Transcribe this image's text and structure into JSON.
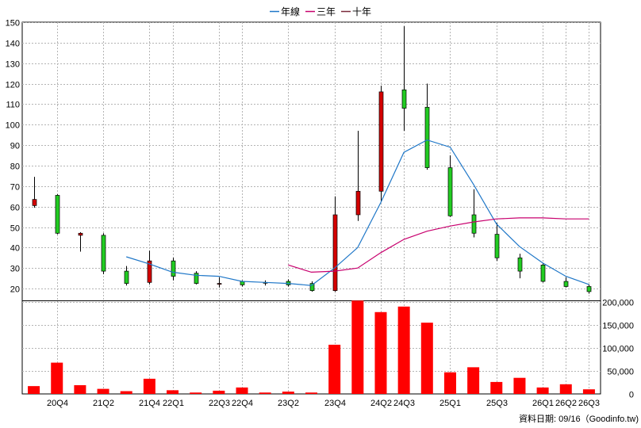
{
  "chart_data": {
    "type": "candlestick+line+bar",
    "title": "",
    "legend": {
      "placement": "top-center",
      "entries": [
        {
          "label": "年線",
          "color": "#1f77c8"
        },
        {
          "label": "三年",
          "color": "#c8006e"
        },
        {
          "label": "十年",
          "color": "#7a2a3a"
        }
      ]
    },
    "grid": true,
    "price_axis": {
      "min": 15,
      "max": 150,
      "ticks": [
        20,
        30,
        40,
        50,
        60,
        70,
        80,
        90,
        100,
        110,
        120,
        130,
        140,
        150
      ],
      "tick_labels": [
        "20",
        "30",
        "40",
        "50",
        "60",
        "70",
        "80",
        "90",
        "100",
        "110",
        "120",
        "130",
        "140",
        "150"
      ]
    },
    "volume_axis": {
      "min": 0,
      "max": 200000,
      "ticks": [
        0,
        50000,
        100000,
        150000,
        200000
      ],
      "tick_labels": [
        "0",
        "50,000",
        "100,000",
        "150,000",
        "200,000"
      ]
    },
    "x_tick_labels": [
      {
        "i": 1,
        "label": "20Q4"
      },
      {
        "i": 3,
        "label": "21Q2"
      },
      {
        "i": 5,
        "label": "21Q4"
      },
      {
        "i": 6,
        "label": "22Q1"
      },
      {
        "i": 8,
        "label": "22Q3"
      },
      {
        "i": 9,
        "label": "22Q4"
      },
      {
        "i": 11,
        "label": "23Q2"
      },
      {
        "i": 13,
        "label": "23Q4"
      },
      {
        "i": 15,
        "label": "24Q2"
      },
      {
        "i": 16,
        "label": "24Q3"
      },
      {
        "i": 18,
        "label": "25Q1"
      },
      {
        "i": 20,
        "label": "25Q3"
      },
      {
        "i": 22,
        "label": "26Q1"
      },
      {
        "i": 23,
        "label": "26Q2"
      },
      {
        "i": 24,
        "label": "26Q3"
      }
    ],
    "candles": [
      {
        "open": 60.5,
        "close": 63.5,
        "high": 74.5,
        "low": 59.5
      },
      {
        "open": 65.5,
        "close": 47,
        "high": 66,
        "low": 46.5
      },
      {
        "open": 46,
        "close": 47,
        "high": 47.5,
        "low": 38
      },
      {
        "open": 46,
        "close": 28.5,
        "high": 47,
        "low": 27
      },
      {
        "open": 28.5,
        "close": 22.5,
        "high": 31,
        "low": 21.5
      },
      {
        "open": 23,
        "close": 33.5,
        "high": 38.5,
        "low": 22
      },
      {
        "open": 33.5,
        "close": 26,
        "high": 35,
        "low": 24
      },
      {
        "open": 27.5,
        "close": 22.5,
        "high": 28.5,
        "low": 22
      },
      {
        "open": 22.5,
        "close": 22.5,
        "high": 25.5,
        "low": 20.5
      },
      {
        "open": 23.5,
        "close": 21.8,
        "high": 24,
        "low": 21
      },
      {
        "open": 23,
        "close": 22.7,
        "high": 24,
        "low": 21.5
      },
      {
        "open": 23.5,
        "close": 21.8,
        "high": 24.5,
        "low": 21
      },
      {
        "open": 22.5,
        "close": 19,
        "high": 23.5,
        "low": 18.5
      },
      {
        "open": 19,
        "close": 56,
        "high": 65,
        "low": 18.5
      },
      {
        "open": 56,
        "close": 67.5,
        "high": 97,
        "low": 53
      },
      {
        "open": 67.5,
        "close": 116,
        "high": 119,
        "low": 62.5
      },
      {
        "open": 117,
        "close": 108,
        "high": 148,
        "low": 97
      },
      {
        "open": 108.5,
        "close": 79,
        "high": 120,
        "low": 78
      },
      {
        "open": 79,
        "close": 55.5,
        "high": 85,
        "low": 55
      },
      {
        "open": 56,
        "close": 47,
        "high": 68.5,
        "low": 45
      },
      {
        "open": 46.5,
        "close": 35,
        "high": 52,
        "low": 33.5
      },
      {
        "open": 35,
        "close": 28.5,
        "high": 37,
        "low": 25
      },
      {
        "open": 31.5,
        "close": 23.5,
        "high": 32.5,
        "low": 23
      },
      {
        "open": 23.5,
        "close": 21,
        "high": 25.5,
        "low": 20.5
      },
      {
        "open": 21,
        "close": 18.5,
        "high": 22,
        "low": 17.5
      }
    ],
    "series": [
      {
        "name": "年線",
        "color": "#1f77c8",
        "start": 4,
        "values": [
          35.5,
          32,
          28,
          26.5,
          26,
          23.5,
          23,
          22.5,
          21.5,
          30,
          40,
          62,
          86.5,
          92.5,
          89,
          71,
          51.5,
          40.5,
          32.5,
          26,
          22
        ]
      },
      {
        "name": "三年",
        "color": "#c8006e",
        "start": 11,
        "values": [
          31.5,
          28,
          28.5,
          30,
          37.5,
          44,
          48,
          50.5,
          52.5,
          54,
          54.5,
          54.5,
          54,
          54
        ]
      }
    ],
    "volume": [
      17000,
      68000,
      19000,
      11000,
      6000,
      33000,
      8000,
      3000,
      7000,
      14000,
      3000,
      5000,
      3000,
      107000,
      203000,
      178000,
      190000,
      155000,
      47000,
      58000,
      26000,
      35000,
      14000,
      21000,
      10000
    ]
  },
  "footer": {
    "source": "資料日期: 09/16（Goodinfo.tw)"
  }
}
